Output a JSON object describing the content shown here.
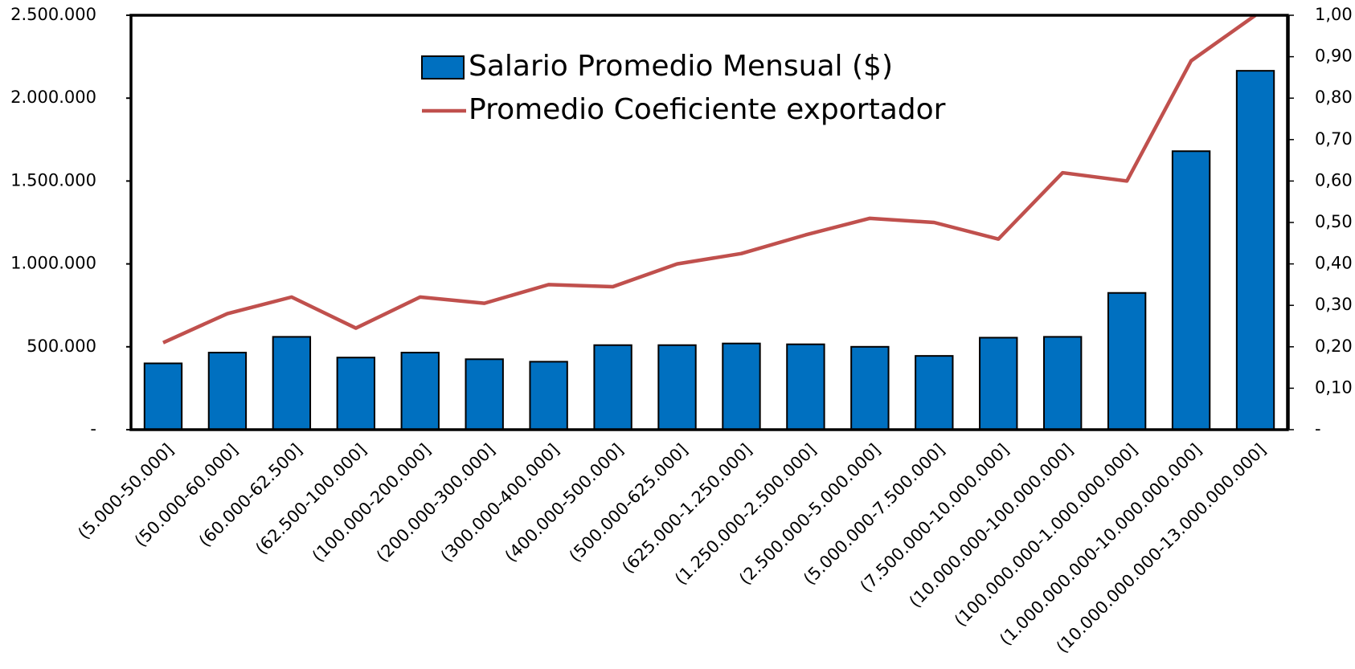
{
  "chart_data": {
    "type": "bar",
    "categories": [
      "(5.000-50.000]",
      "(50.000-60.000]",
      "(60.000-62.500]",
      "(62.500-100.000]",
      "(100.000-200.000]",
      "(200.000-300.000]",
      "(300.000-400.000]",
      "(400.000-500.000]",
      "(500.000-625.000]",
      "(625.000-1.250.000]",
      "(1.250.000-2.500.000]",
      "(2.500.000-5.000.000]",
      "(5.000.000-7.500.000]",
      "(7.500.000-10.000.000]",
      "(10.000.000-100.000.000]",
      "(100.000.000-1.000.000.000]",
      "(1.000.000.000-10.000.000.000]",
      "(10.000.000.000-13.000.000.000]"
    ],
    "series": [
      {
        "name": "Salario Promedio Mensual ($)",
        "type": "bar",
        "color": "#0070c0",
        "values": [
          400000,
          465000,
          560000,
          435000,
          465000,
          425000,
          410000,
          510000,
          510000,
          520000,
          515000,
          500000,
          445000,
          555000,
          560000,
          825000,
          1680000,
          2165000
        ]
      },
      {
        "name": "Promedio Coeficiente exportador",
        "type": "line",
        "color": "#c0504d",
        "axis": "y2",
        "values": [
          0.21,
          0.28,
          0.32,
          0.245,
          0.32,
          0.305,
          0.35,
          0.345,
          0.4,
          0.425,
          0.47,
          0.51,
          0.5,
          0.46,
          0.62,
          0.6,
          0.89,
          1.0
        ]
      }
    ],
    "ylim": [
      0,
      2500000
    ],
    "yticks": [
      {
        "value": 0,
        "label": "-"
      },
      {
        "value": 500000,
        "label": "500.000"
      },
      {
        "value": 1000000,
        "label": "1.000.000"
      },
      {
        "value": 1500000,
        "label": "1.500.000"
      },
      {
        "value": 2000000,
        "label": "2.000.000"
      },
      {
        "value": 2500000,
        "label": "2.500.000"
      }
    ],
    "y2lim": [
      0,
      1
    ],
    "y2ticks": [
      {
        "value": 0,
        "label": "-"
      },
      {
        "value": 0.1,
        "label": "0,10"
      },
      {
        "value": 0.2,
        "label": "0,20"
      },
      {
        "value": 0.3,
        "label": "0,30"
      },
      {
        "value": 0.4,
        "label": "0,40"
      },
      {
        "value": 0.5,
        "label": "0,50"
      },
      {
        "value": 0.6,
        "label": "0,60"
      },
      {
        "value": 0.7,
        "label": "0,70"
      },
      {
        "value": 0.8,
        "label": "0,80"
      },
      {
        "value": 0.9,
        "label": "0,90"
      },
      {
        "value": 1,
        "label": "1,00"
      }
    ],
    "legend": "top"
  }
}
